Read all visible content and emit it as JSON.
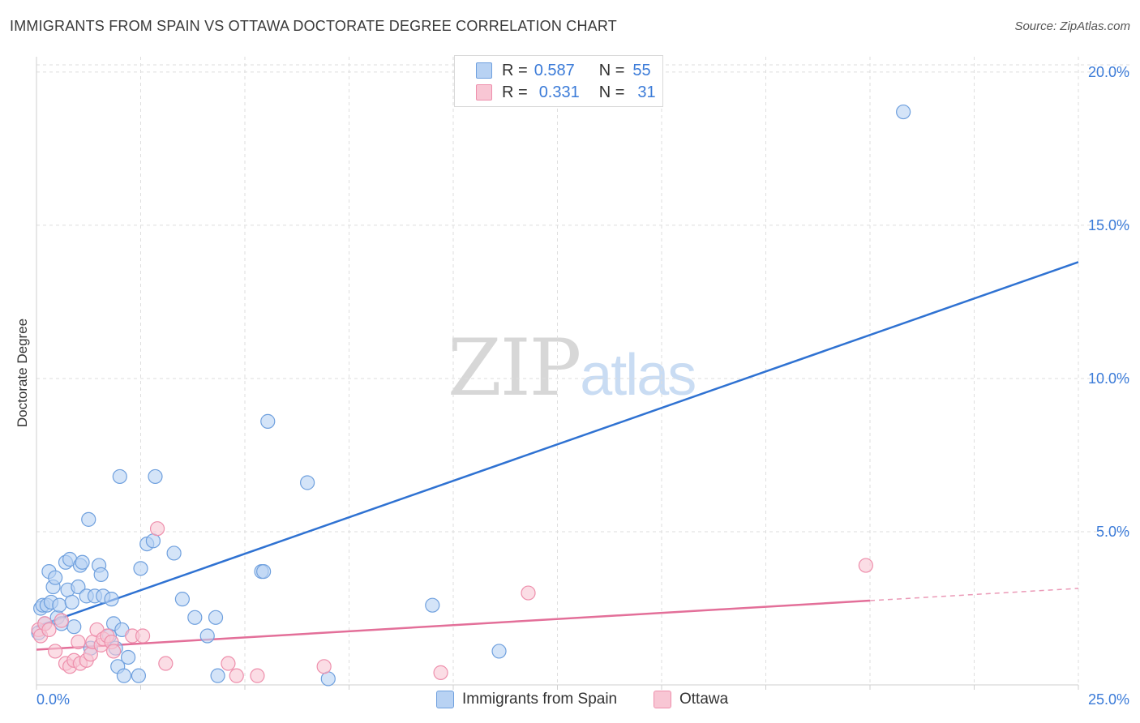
{
  "title": "IMMIGRANTS FROM SPAIN VS OTTAWA DOCTORATE DEGREE CORRELATION CHART",
  "source": "Source: ZipAtlas.com",
  "watermark": {
    "zip": "ZIP",
    "atlas": "atlas"
  },
  "legend": {
    "rows": [
      {
        "r_label": "R =",
        "r_value": "0.587",
        "n_label": "N =",
        "n_value": "55"
      },
      {
        "r_label": "R =",
        "r_value": "0.331",
        "n_label": "N =",
        "n_value": "31"
      }
    ]
  },
  "bottom_legend": {
    "series1": "Immigrants from Spain",
    "series2": "Ottawa"
  },
  "colors": {
    "series1_fill": "#b8d2f3",
    "series1_stroke": "#6fa0de",
    "series1_line": "#2f72d2",
    "series2_fill": "#f8c6d4",
    "series2_stroke": "#ee8fac",
    "series2_line": "#e36f99",
    "grid": "#dedede",
    "tick_label": "#3b7bd8"
  },
  "chart_data": {
    "type": "scatter",
    "title": "IMMIGRANTS FROM SPAIN VS OTTAWA DOCTORATE DEGREE CORRELATION CHART",
    "xlabel": "",
    "ylabel": "Doctorate Degree",
    "xlim": [
      0,
      25
    ],
    "ylim": [
      0,
      20.5
    ],
    "x_tick_labels": [
      "0.0%",
      "25.0%"
    ],
    "y_ticks": [
      5,
      10,
      15,
      20
    ],
    "y_tick_labels": [
      "5.0%",
      "10.0%",
      "15.0%",
      "20.0%"
    ],
    "grid": true,
    "legend_position": "top-center",
    "series": [
      {
        "name": "Immigrants from Spain",
        "r": 0.587,
        "n": 55,
        "points": [
          [
            0.1,
            2.5
          ],
          [
            0.15,
            2.6
          ],
          [
            0.2,
            2.0
          ],
          [
            0.25,
            2.6
          ],
          [
            0.3,
            3.7
          ],
          [
            0.35,
            2.7
          ],
          [
            0.4,
            3.2
          ],
          [
            0.45,
            3.5
          ],
          [
            0.5,
            2.2
          ],
          [
            0.55,
            2.6
          ],
          [
            0.6,
            2.0
          ],
          [
            0.7,
            4.0
          ],
          [
            0.75,
            3.1
          ],
          [
            0.8,
            4.1
          ],
          [
            0.85,
            2.7
          ],
          [
            0.9,
            1.9
          ],
          [
            1.0,
            3.2
          ],
          [
            1.05,
            3.9
          ],
          [
            1.1,
            4.0
          ],
          [
            1.2,
            2.9
          ],
          [
            1.25,
            5.4
          ],
          [
            1.3,
            1.2
          ],
          [
            1.4,
            2.9
          ],
          [
            1.5,
            3.9
          ],
          [
            1.55,
            3.6
          ],
          [
            1.6,
            2.9
          ],
          [
            1.75,
            1.6
          ],
          [
            1.8,
            2.8
          ],
          [
            1.85,
            2.0
          ],
          [
            1.9,
            1.2
          ],
          [
            1.95,
            0.6
          ],
          [
            2.0,
            6.8
          ],
          [
            2.05,
            1.8
          ],
          [
            2.1,
            0.3
          ],
          [
            2.2,
            0.9
          ],
          [
            2.45,
            0.3
          ],
          [
            2.5,
            3.8
          ],
          [
            2.65,
            4.6
          ],
          [
            2.8,
            4.7
          ],
          [
            2.85,
            6.8
          ],
          [
            3.3,
            4.3
          ],
          [
            3.5,
            2.8
          ],
          [
            3.8,
            2.2
          ],
          [
            4.1,
            1.6
          ],
          [
            4.3,
            2.2
          ],
          [
            4.35,
            0.3
          ],
          [
            5.4,
            3.7
          ],
          [
            5.45,
            3.7
          ],
          [
            5.55,
            8.6
          ],
          [
            6.5,
            6.6
          ],
          [
            7.0,
            0.2
          ],
          [
            9.5,
            2.6
          ],
          [
            11.1,
            1.1
          ],
          [
            20.8,
            18.7
          ],
          [
            0.05,
            1.7
          ]
        ]
      },
      {
        "name": "Ottawa",
        "r": 0.331,
        "n": 31,
        "points": [
          [
            0.05,
            1.8
          ],
          [
            0.1,
            1.6
          ],
          [
            0.2,
            2.0
          ],
          [
            0.3,
            1.8
          ],
          [
            0.45,
            1.1
          ],
          [
            0.6,
            2.1
          ],
          [
            0.7,
            0.7
          ],
          [
            0.8,
            0.6
          ],
          [
            0.9,
            0.8
          ],
          [
            1.0,
            1.4
          ],
          [
            1.05,
            0.7
          ],
          [
            1.2,
            0.8
          ],
          [
            1.3,
            1.0
          ],
          [
            1.35,
            1.4
          ],
          [
            1.45,
            1.8
          ],
          [
            1.55,
            1.3
          ],
          [
            1.6,
            1.5
          ],
          [
            1.7,
            1.6
          ],
          [
            1.8,
            1.4
          ],
          [
            1.85,
            1.1
          ],
          [
            2.3,
            1.6
          ],
          [
            2.55,
            1.6
          ],
          [
            2.9,
            5.1
          ],
          [
            3.1,
            0.7
          ],
          [
            4.6,
            0.7
          ],
          [
            4.8,
            0.3
          ],
          [
            5.3,
            0.3
          ],
          [
            6.9,
            0.6
          ],
          [
            9.7,
            0.4
          ],
          [
            11.8,
            3.0
          ],
          [
            19.9,
            3.9
          ]
        ]
      }
    ],
    "trendlines": [
      {
        "series": "Immigrants from Spain",
        "x0": 0.0,
        "y0": 1.9,
        "x1": 25.0,
        "y1": 13.8,
        "dashed_from": null
      },
      {
        "series": "Ottawa",
        "x0": 0.0,
        "y0": 1.15,
        "x1": 25.0,
        "y1": 3.15,
        "dashed_from": 20.0
      }
    ]
  }
}
